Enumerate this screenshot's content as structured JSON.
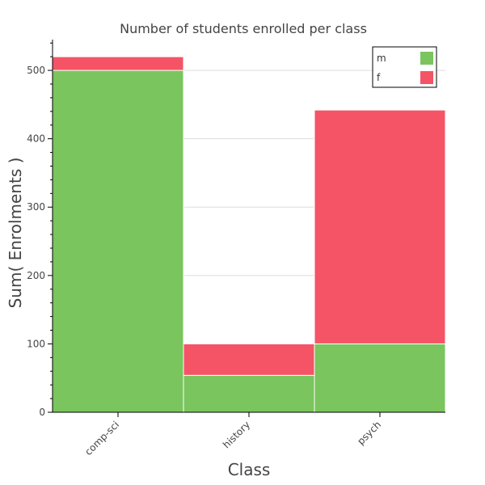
{
  "chart_data": {
    "type": "bar",
    "stacked": true,
    "title": "Number of students enrolled per class",
    "xlabel": "Class",
    "ylabel": "Sum( Enrolments )",
    "categories": [
      "comp-sci",
      "history",
      "psych"
    ],
    "series": [
      {
        "name": "m",
        "color": "#7ac55e",
        "values": [
          500,
          54,
          100
        ]
      },
      {
        "name": "f",
        "color": "#f45466",
        "values": [
          20,
          46,
          342
        ]
      }
    ],
    "ylim": [
      0,
      545
    ],
    "yticks": [
      0,
      100,
      200,
      300,
      400,
      500
    ],
    "grid": true,
    "legend_position": "top-right"
  }
}
